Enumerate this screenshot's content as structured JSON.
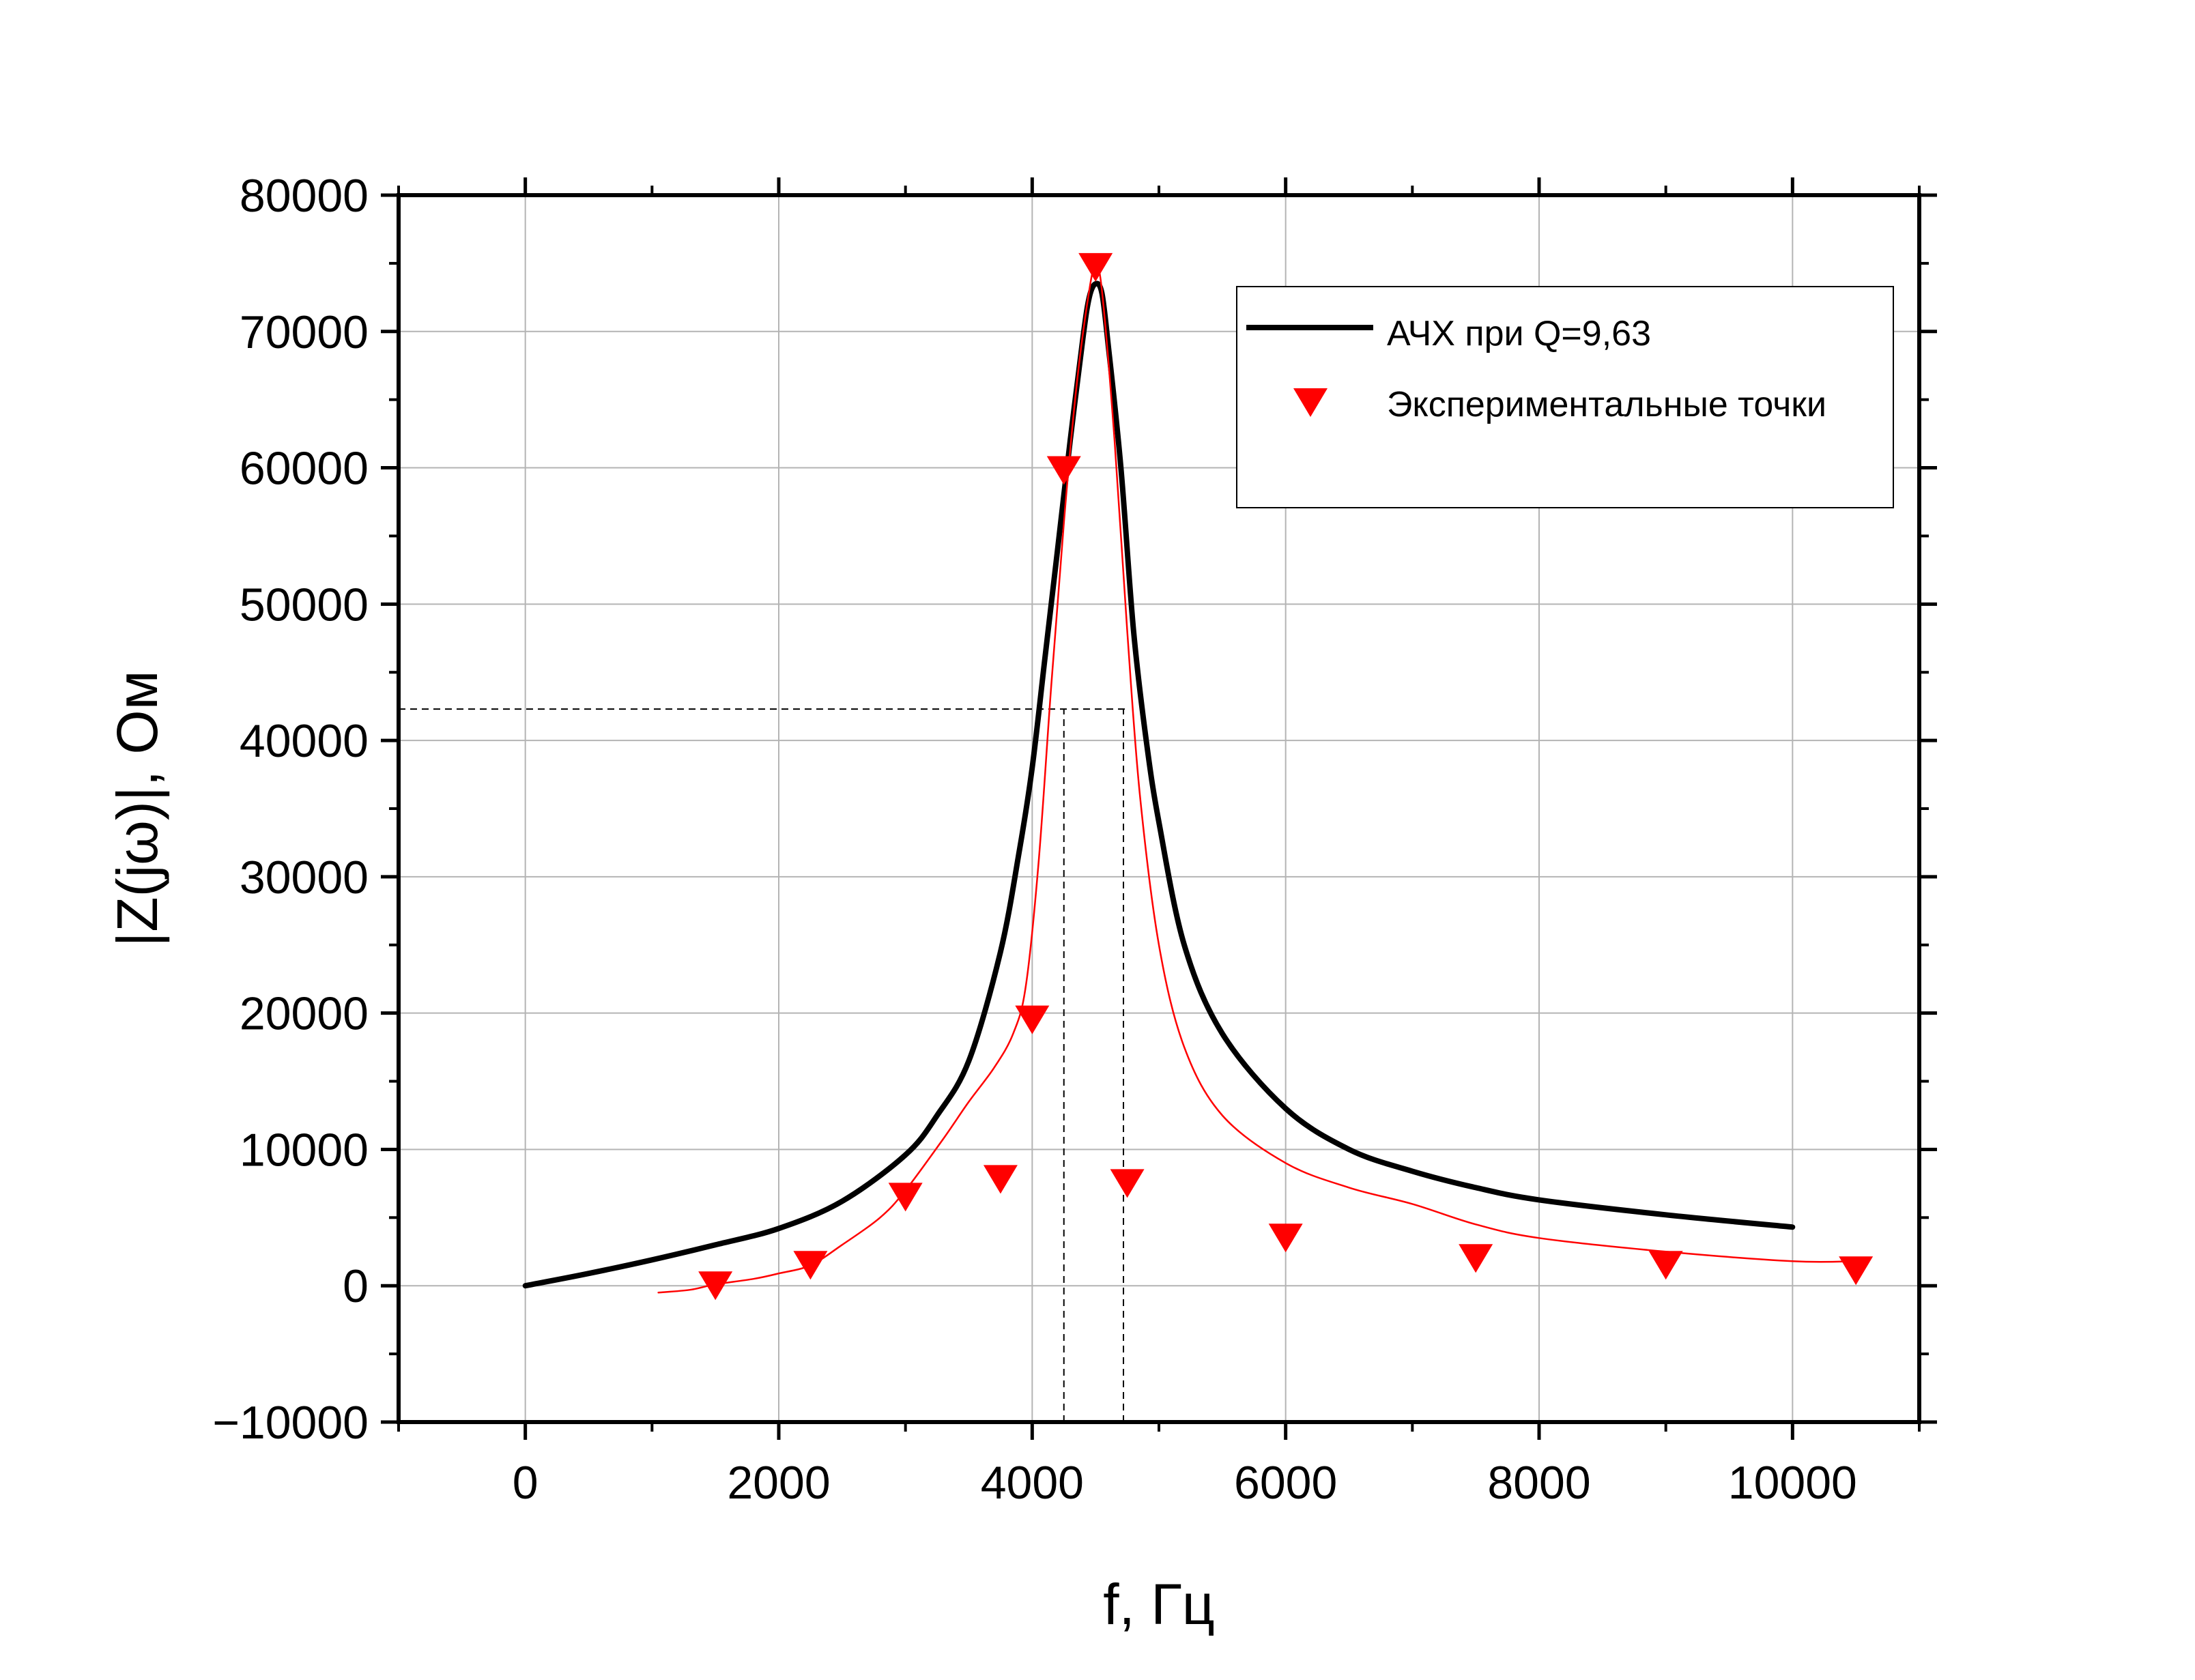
{
  "chart_data": {
    "type": "line",
    "xlabel": "f, Гц",
    "ylabel": "|Z(jω)|, Ом",
    "xlim": [
      -1000,
      11000
    ],
    "ylim": [
      -10000,
      80000
    ],
    "x_ticks": [
      0,
      2000,
      4000,
      6000,
      8000,
      10000
    ],
    "y_ticks": [
      -10000,
      0,
      10000,
      20000,
      30000,
      40000,
      50000,
      60000,
      70000,
      80000
    ],
    "x_tick_labels": [
      "0",
      "2000",
      "4000",
      "6000",
      "8000",
      "10000"
    ],
    "y_tick_labels": [
      "−10000",
      "0",
      "10000",
      "20000",
      "30000",
      "40000",
      "50000",
      "60000",
      "70000",
      "80000"
    ],
    "grid": true,
    "legend": {
      "placement": "top-right"
    },
    "series": [
      {
        "name": "АЧХ при Q=9,63",
        "kind": "line",
        "color": "#000000",
        "x": [
          0,
          500,
          1000,
          1500,
          2000,
          2500,
          3000,
          3250,
          3500,
          3750,
          3900,
          4000,
          4100,
          4200,
          4300,
          4400,
          4450,
          4500,
          4550,
          4600,
          4700,
          4800,
          4900,
          5000,
          5200,
          5500,
          6000,
          6500,
          7000,
          7500,
          8000,
          9000,
          10000
        ],
        "y": [
          0,
          900,
          1900,
          3000,
          4200,
          6200,
          9600,
          12500,
          16500,
          24500,
          32000,
          38000,
          46000,
          54000,
          62000,
          69500,
          72500,
          73500,
          72800,
          69000,
          60000,
          48000,
          40000,
          34000,
          25000,
          18500,
          13000,
          10000,
          8400,
          7200,
          6300,
          5200,
          4300
        ]
      },
      {
        "name": "",
        "kind": "line",
        "color": "#ff0000",
        "x": [
          1050,
          1300,
          1500,
          1800,
          2000,
          2250,
          2500,
          2800,
          3000,
          3300,
          3500,
          3700,
          3850,
          3950,
          4050,
          4150,
          4250,
          4350,
          4450,
          4500,
          4550,
          4650,
          4750,
          4850,
          5000,
          5200,
          5500,
          6000,
          6500,
          7000,
          7500,
          8000,
          9000,
          10000,
          10500
        ],
        "y": [
          -500,
          -300,
          100,
          500,
          900,
          1500,
          3000,
          5000,
          7000,
          10800,
          13500,
          16000,
          18500,
          22000,
          31000,
          44000,
          56000,
          66000,
          73000,
          74800,
          73000,
          62000,
          48000,
          36000,
          25000,
          17500,
          12500,
          9000,
          7200,
          6000,
          4500,
          3500,
          2500,
          1800,
          1800
        ]
      },
      {
        "name": "Экспериментальные точки",
        "kind": "scatter",
        "marker": "triangle-down",
        "color": "#ff0000",
        "x": [
          1500,
          2250,
          3000,
          3750,
          4000,
          4250,
          4500,
          4750,
          6000,
          7500,
          9000,
          10500
        ],
        "y": [
          0,
          1500,
          6500,
          7800,
          19500,
          59800,
          74700,
          7500,
          3500,
          2000,
          1500,
          1100
        ]
      }
    ],
    "reference_lines": [
      {
        "kind": "horizontal",
        "y": 42300,
        "x_from": -1000,
        "x_to": 4750
      },
      {
        "kind": "vertical",
        "x": 4250,
        "y_from": -10000,
        "y_to": 42300
      },
      {
        "kind": "vertical",
        "x": 4720,
        "y_from": -10000,
        "y_to": 42300
      }
    ]
  }
}
